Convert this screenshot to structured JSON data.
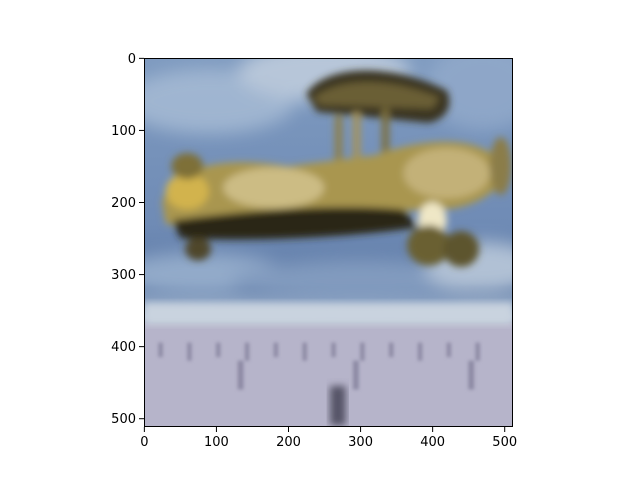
{
  "chart_data": {
    "type": "heatmap",
    "title": "",
    "xlabel": "",
    "ylabel": "",
    "image_size": [
      512,
      512
    ],
    "xlim": [
      0,
      511
    ],
    "ylim": [
      511,
      0
    ],
    "y_axis_inverted": true,
    "grid": false,
    "x_ticks": [
      0,
      100,
      200,
      300,
      400,
      500
    ],
    "y_ticks": [
      0,
      100,
      200,
      300,
      400,
      500
    ],
    "x_tick_labels": [
      "0",
      "100",
      "200",
      "300",
      "400",
      "500"
    ],
    "y_tick_labels": [
      "0",
      "100",
      "200",
      "300",
      "400",
      "500"
    ],
    "image_content": "blurry photo of a gold biplane model against a blue cloudy sky above a ruler",
    "colors": {
      "sky": "#6f8fb8",
      "sky_light": "#aec1d6",
      "plane_gold": "#b9a45a",
      "plane_shadow": "#2c2818",
      "ruler": "#b8b6cc",
      "frame": "#000000"
    }
  }
}
